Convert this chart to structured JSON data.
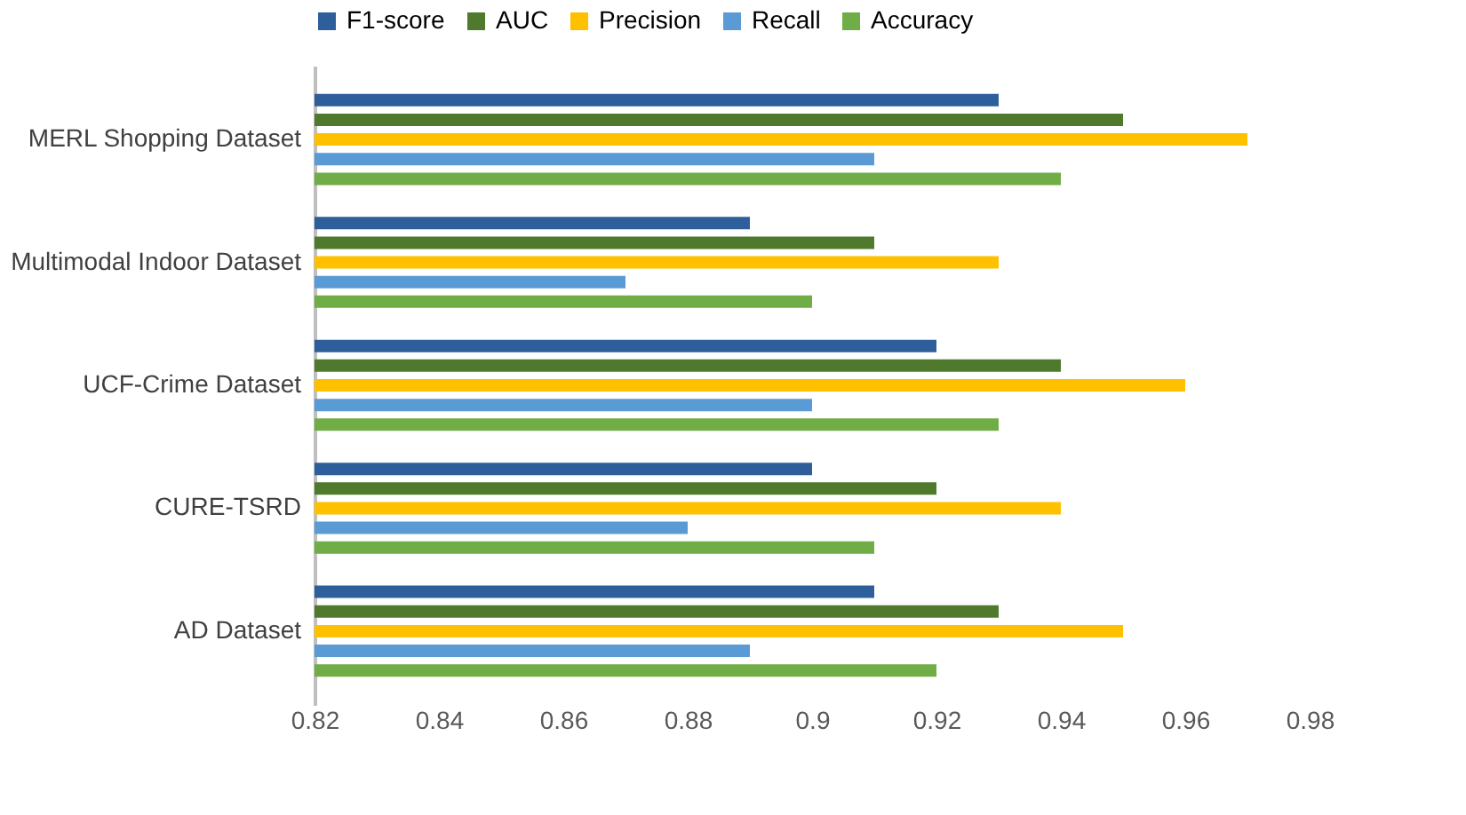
{
  "chart_data": {
    "type": "bar",
    "orientation": "horizontal",
    "categories": [
      "MERL Shopping Dataset",
      "Multimodal Indoor Dataset",
      "UCF-Crime Dataset",
      "CURE-TSRD",
      "AD Dataset"
    ],
    "series": [
      {
        "name": "F1-score",
        "color": "#2e5f9b",
        "values": [
          0.93,
          0.89,
          0.92,
          0.9,
          0.91
        ]
      },
      {
        "name": "AUC",
        "color": "#4f7a2e",
        "values": [
          0.95,
          0.91,
          0.94,
          0.92,
          0.93
        ]
      },
      {
        "name": "Precision",
        "color": "#ffc000",
        "values": [
          0.97,
          0.93,
          0.96,
          0.94,
          0.95
        ]
      },
      {
        "name": "Recall",
        "color": "#5b9bd5",
        "values": [
          0.91,
          0.87,
          0.9,
          0.88,
          0.89
        ]
      },
      {
        "name": "Accuracy",
        "color": "#70ad47",
        "values": [
          0.94,
          0.9,
          0.93,
          0.91,
          0.92
        ]
      }
    ],
    "xlim": [
      0.82,
      0.98
    ],
    "xticks": [
      0.82,
      0.84,
      0.86,
      0.88,
      {
        "value": 0.9,
        "label": "0.9"
      },
      0.92,
      0.94,
      0.96,
      0.98
    ],
    "grid": false,
    "legend": "top"
  }
}
